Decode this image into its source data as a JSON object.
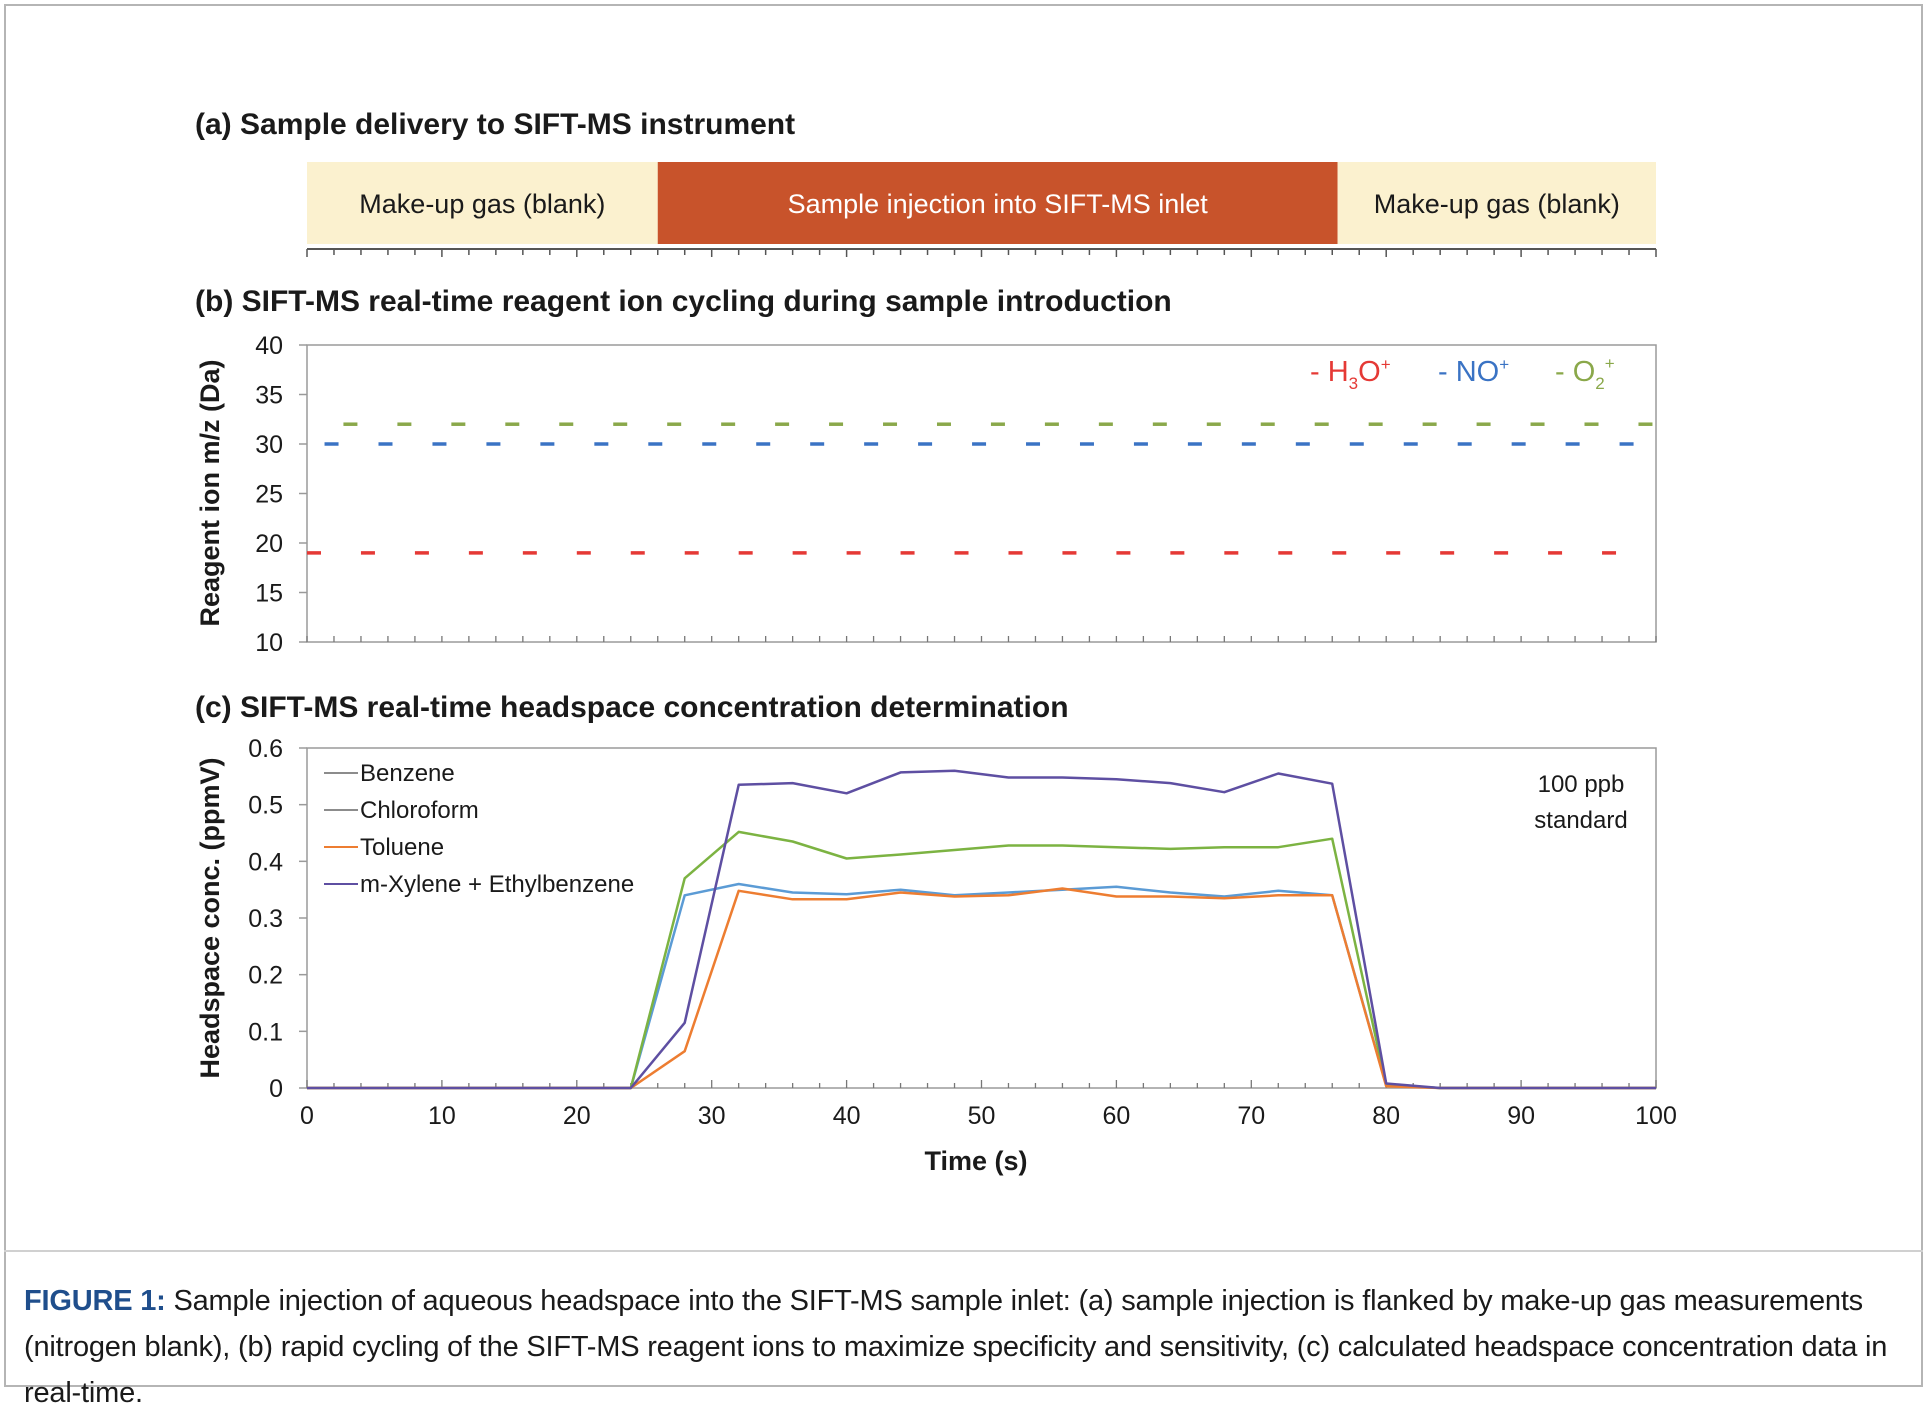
{
  "panels": {
    "a": {
      "title": "(a) Sample delivery to SIFT-MS instrument",
      "segments": [
        {
          "label": "Make-up gas (blank)",
          "start": 0,
          "end": 26,
          "color": "#fbf1cf",
          "text_color": "#1a1a1a"
        },
        {
          "label": "Sample injection into SIFT-MS inlet",
          "start": 26,
          "end": 76.4,
          "color": "#c8532b",
          "text_color": "#ffffff"
        },
        {
          "label": "Make-up gas (blank)",
          "start": 76.4,
          "end": 100,
          "color": "#fbf1cf",
          "text_color": "#1a1a1a"
        }
      ]
    },
    "b": {
      "title": "(b) SIFT-MS real-time reagent ion cycling during sample introduction"
    },
    "c": {
      "title": "(c) SIFT-MS real-time headspace concentration determination",
      "annotation_line1": "100 ppb",
      "annotation_line2": "standard"
    }
  },
  "chart_data": [
    {
      "type": "scatter",
      "title": "(b) SIFT-MS real-time reagent ion cycling during sample introduction",
      "xlabel": "",
      "ylabel": "Reagent ion m/z (Da)",
      "xlim": [
        0,
        100
      ],
      "ylim": [
        10,
        40
      ],
      "yticks": [
        10,
        15,
        20,
        25,
        30,
        35,
        40
      ],
      "cycle_period_s": 4,
      "series": [
        {
          "name": "- H3O+",
          "label_parts": [
            "- H",
            "3",
            "O",
            "+"
          ],
          "color": "#e53935",
          "y": 19,
          "x": [
            0,
            4,
            8,
            12,
            16,
            20,
            24,
            28,
            32,
            36,
            40,
            44,
            48,
            52,
            56,
            60,
            64,
            68,
            72,
            76,
            80,
            84,
            88,
            92,
            96
          ]
        },
        {
          "name": "- NO+",
          "label_parts": [
            "- NO",
            "+"
          ],
          "color": "#3a73c4",
          "y": 30,
          "x": [
            1.3,
            5.3,
            9.3,
            13.3,
            17.3,
            21.3,
            25.3,
            29.3,
            33.3,
            37.3,
            41.3,
            45.3,
            49.3,
            53.3,
            57.3,
            61.3,
            65.3,
            69.3,
            73.3,
            77.3,
            81.3,
            85.3,
            89.3,
            93.3,
            97.3
          ]
        },
        {
          "name": "- O2+",
          "label_parts": [
            "- O",
            "2",
            "+"
          ],
          "color": "#8aa84a",
          "y": 32,
          "x": [
            2.7,
            6.7,
            10.7,
            14.7,
            18.7,
            22.7,
            26.7,
            30.7,
            34.7,
            38.7,
            42.7,
            46.7,
            50.7,
            54.7,
            58.7,
            62.7,
            66.7,
            70.7,
            74.7,
            78.7,
            82.7,
            86.7,
            90.7,
            94.7,
            98.7
          ]
        }
      ]
    },
    {
      "type": "line",
      "title": "(c) SIFT-MS real-time headspace concentration determination",
      "xlabel": "Time (s)",
      "ylabel": "Headspace conc. (ppmV)",
      "xlim": [
        0,
        100
      ],
      "ylim": [
        0,
        0.6
      ],
      "xticks": [
        0,
        10,
        20,
        30,
        40,
        50,
        60,
        70,
        80,
        90,
        100
      ],
      "yticks": [
        0,
        0.1,
        0.2,
        0.3,
        0.4,
        0.5,
        0.6
      ],
      "legend": "top-left",
      "x": [
        0,
        4,
        8,
        12,
        16,
        20,
        24,
        28,
        32,
        36,
        40,
        44,
        48,
        52,
        56,
        60,
        64,
        68,
        72,
        76,
        80,
        84,
        88,
        92,
        96,
        100
      ],
      "series": [
        {
          "name": "Benzene",
          "color": "#5b9bd5",
          "legend_color": "#8c8c8c",
          "values": [
            0,
            0,
            0,
            0,
            0,
            0,
            0,
            0.34,
            0.36,
            0.345,
            0.342,
            0.35,
            0.34,
            0.345,
            0.35,
            0.355,
            0.345,
            0.338,
            0.348,
            0.34,
            0.005,
            0,
            0,
            0,
            0,
            0
          ]
        },
        {
          "name": "Chloroform",
          "color": "#7cb342",
          "legend_color": "#8c8c8c",
          "values": [
            0,
            0,
            0,
            0,
            0,
            0,
            0,
            0.37,
            0.452,
            0.435,
            0.405,
            0.412,
            0.42,
            0.428,
            0.428,
            0.425,
            0.422,
            0.425,
            0.425,
            0.44,
            0.005,
            0,
            0,
            0,
            0,
            0
          ]
        },
        {
          "name": "Toluene",
          "color": "#ed7d31",
          "legend_color": "#ed7d31",
          "values": [
            0,
            0,
            0,
            0,
            0,
            0,
            0,
            0.065,
            0.348,
            0.333,
            0.333,
            0.345,
            0.338,
            0.34,
            0.352,
            0.338,
            0.338,
            0.335,
            0.34,
            0.34,
            0.003,
            0,
            0,
            0,
            0,
            0
          ]
        },
        {
          "name": "m-Xylene + Ethylbenzene",
          "color": "#5e4fa2",
          "legend_color": "#5e4fa2",
          "values": [
            0,
            0,
            0,
            0,
            0,
            0,
            0,
            0.115,
            0.535,
            0.538,
            0.52,
            0.557,
            0.56,
            0.548,
            0.548,
            0.545,
            0.538,
            0.522,
            0.555,
            0.537,
            0.008,
            0,
            0,
            0,
            0,
            0
          ]
        }
      ]
    }
  ],
  "caption": {
    "lead": "FIGURE 1:",
    "text": " Sample injection of aqueous headspace into the SIFT-MS sample inlet: (a) sample injection is flanked by make-up gas measurements (nitrogen blank), (b) rapid cycling of the SIFT-MS reagent ions to maximize specificity and sensitivity, (c) calculated headspace concentration data in real-time."
  }
}
